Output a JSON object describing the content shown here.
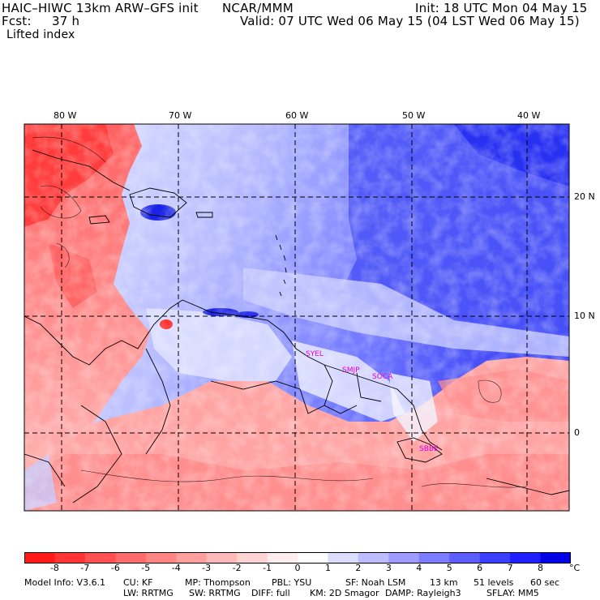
{
  "header": {
    "model": "HAIC–HIWC 13km ARW–GFS init",
    "org": "NCAR/MMM",
    "init": "Init: 18 UTC Mon 04 May 15",
    "fcst_label": "Fcst:",
    "fcst_value": "37 h",
    "valid": "Valid: 07 UTC Wed 06 May 15 (04 LST Wed 06 May 15)",
    "field": "Lifted index"
  },
  "map": {
    "lon_labels": [
      "80 W",
      "70 W",
      "60 W",
      "50 W",
      "40 W"
    ],
    "lat_labels": [
      "20 N",
      "10 N",
      "0"
    ],
    "stations": [
      "SYEL",
      "SMJP",
      "SOCA",
      "SBBE"
    ]
  },
  "colorbar": {
    "labels": [
      "-8",
      "-7",
      "-6",
      "-5",
      "-4",
      "-3",
      "-2",
      "-1",
      "0",
      "1",
      "2",
      "3",
      "4",
      "5",
      "6",
      "7",
      "8"
    ],
    "unit": "°C",
    "colors": [
      "#ff1a1a",
      "#ff3535",
      "#ff5151",
      "#ff6b6b",
      "#ff8585",
      "#ff9f9f",
      "#ffb9b9",
      "#ffd3d3",
      "#ffeded",
      "#ffffff",
      "#dcdcff",
      "#bcbcff",
      "#9d9dff",
      "#7d7dff",
      "#5e5eff",
      "#3e3eff",
      "#1f1fff",
      "#0000e6"
    ]
  },
  "footer": {
    "line1": [
      "Model Info: V3.6.1",
      "CU: KF",
      "MP: Thompson",
      "PBL: YSU",
      "SF: Noah LSM",
      "13 km",
      "51 levels",
      "60 sec"
    ],
    "line2": [
      "LW: RRTMG",
      "SW: RRTMG",
      "DIFF: full",
      "KM: 2D Smagor",
      "DAMP: Rayleigh3",
      "SFLAY: MM5"
    ]
  }
}
